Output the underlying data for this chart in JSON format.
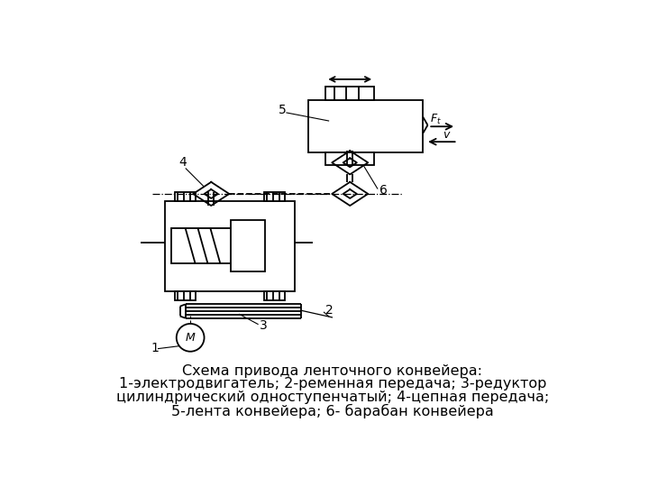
{
  "title_line1": "Схема привода ленточного конвейера:",
  "title_line2": "1-электродвигатель; 2-ременная передача; 3-редуктор",
  "title_line3": "цилиндрический одноступенчатый; 4-цепная передача;",
  "title_line4": "5-лента конвейера; 6- барабан конвейера",
  "bg_color": "#ffffff",
  "line_color": "#000000"
}
